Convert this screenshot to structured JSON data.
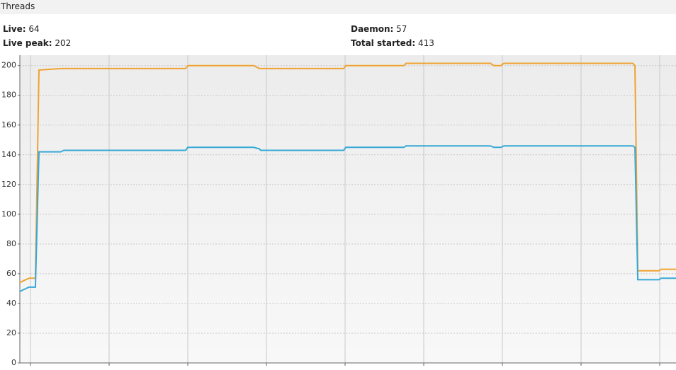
{
  "header": {
    "title": "Threads"
  },
  "stats": [
    {
      "label": "Live:",
      "value": 64
    },
    {
      "label": "Daemon:",
      "value": 57
    },
    {
      "label": "Live peak:",
      "value": 202
    },
    {
      "label": "Total started:",
      "value": 413
    }
  ],
  "chart_data": {
    "type": "line",
    "x": [
      -1.35,
      -0.99,
      -0.18,
      0.63,
      1.08,
      3.87,
      4.23,
      19.73,
      20.0,
      28.38,
      29.1,
      29.28,
      39.82,
      40.09,
      47.48,
      47.75,
      58.47,
      58.92,
      59.82,
      60.18,
      76.58,
      76.85,
      77.21,
      79.91,
      80.18,
      82.07
    ],
    "series": [
      {
        "color": "#f0a232",
        "values": [
          54,
          55,
          57,
          57,
          197,
          198,
          198,
          198,
          200,
          200,
          198,
          198,
          198,
          200,
          200,
          201.5,
          201.5,
          200,
          200,
          201.5,
          201.5,
          200,
          62,
          62,
          63,
          63
        ]
      },
      {
        "color": "#36a9d6",
        "values": [
          48,
          49,
          51,
          51,
          142,
          142,
          143,
          143,
          145,
          145,
          144,
          143,
          143,
          145,
          145,
          146,
          146,
          145,
          145,
          146,
          146,
          145,
          56,
          56,
          57,
          57
        ]
      }
    ],
    "xlim": [
      -1.35,
      82.07
    ],
    "xticks": [
      0,
      10,
      20,
      30,
      40,
      50,
      60,
      70,
      80
    ],
    "ylim": [
      0,
      207
    ],
    "yticks": [
      0,
      20,
      40,
      60,
      80,
      100,
      120,
      140,
      160,
      180,
      200
    ],
    "grid": true
  }
}
